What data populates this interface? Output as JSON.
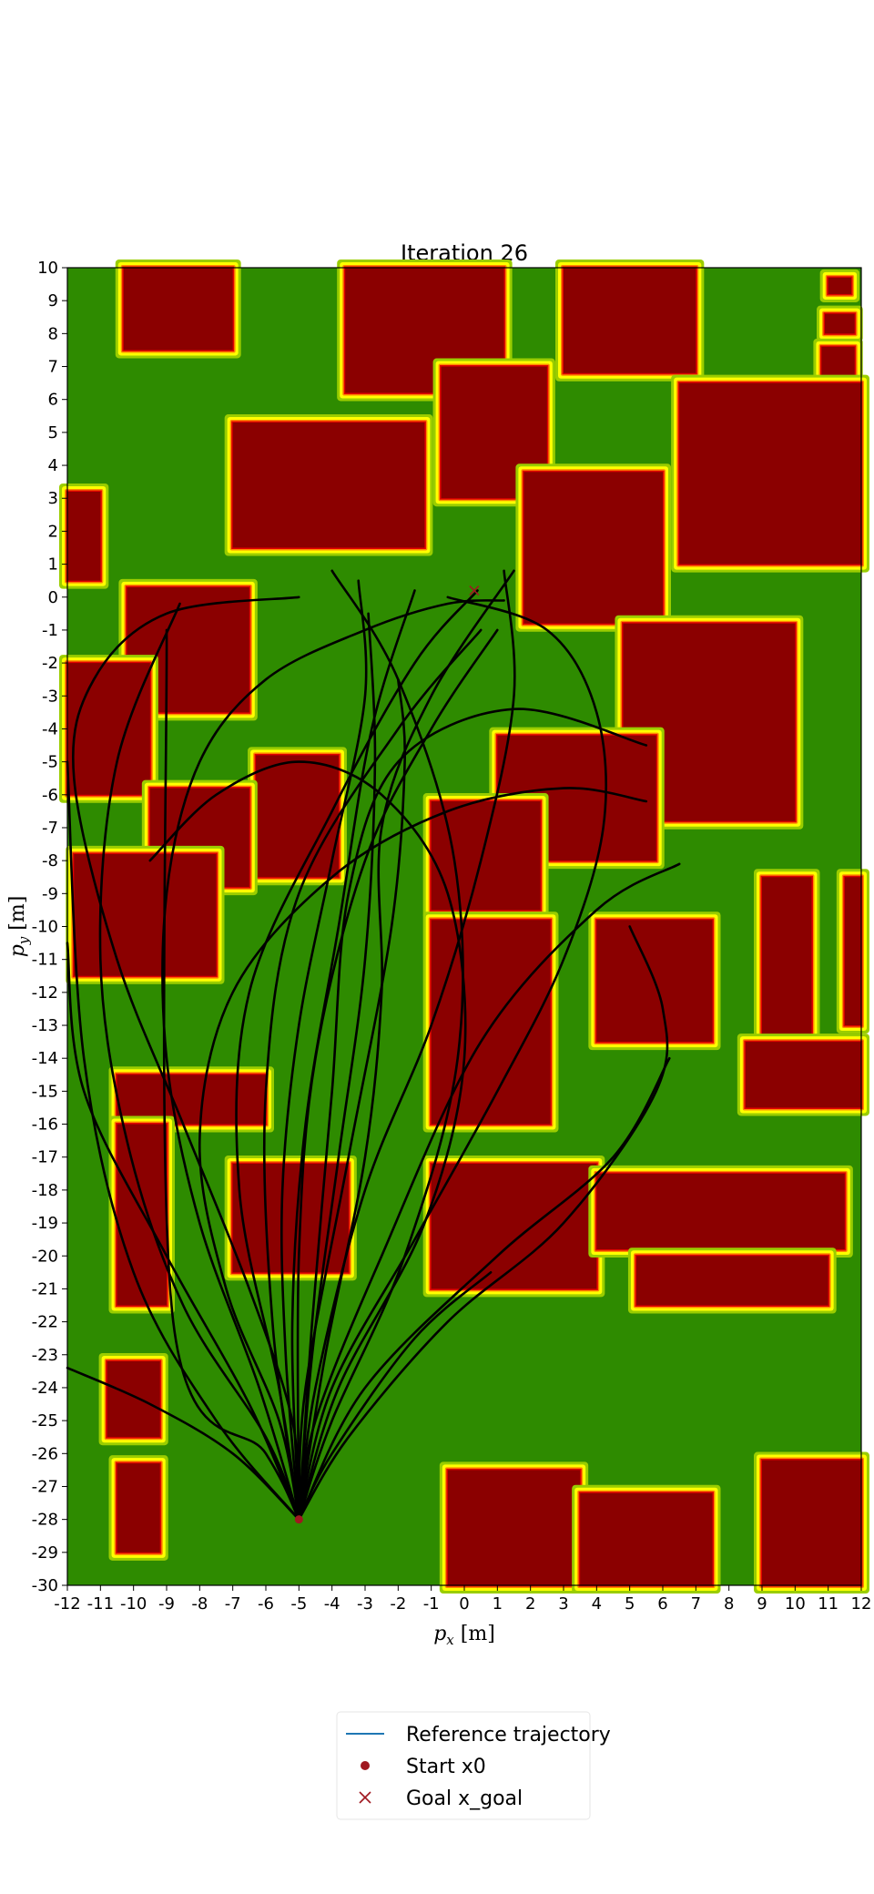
{
  "chart_data": {
    "type": "line",
    "title": "Iteration 26",
    "xlabel": "p_x [m]",
    "ylabel": "p_y [m]",
    "xlim": [
      -12,
      12
    ],
    "ylim": [
      -30,
      10
    ],
    "x_ticks": [
      "-12",
      "-11",
      "-10",
      "-9",
      "-8",
      "-7",
      "-6",
      "-5",
      "-4",
      "-3",
      "-2",
      "-1",
      "0",
      "1",
      "2",
      "3",
      "4",
      "5",
      "6",
      "7",
      "8",
      "9",
      "10",
      "11",
      "12"
    ],
    "y_ticks": [
      "10",
      "9",
      "8",
      "7",
      "6",
      "5",
      "4",
      "3",
      "2",
      "1",
      "0",
      "-1",
      "-2",
      "-3",
      "-4",
      "-5",
      "-6",
      "-7",
      "-8",
      "-9",
      "-10",
      "-11",
      "-12",
      "-13",
      "-14",
      "-15",
      "-16",
      "-17",
      "-18",
      "-19",
      "-20",
      "-21",
      "-22",
      "-23",
      "-24",
      "-25",
      "-26",
      "-27",
      "-28",
      "-29",
      "-30"
    ],
    "grid": false,
    "legend_position": "bottom-center",
    "legend": [
      {
        "label": "Reference trajectory",
        "marker": "line",
        "color": "#1f77b4"
      },
      {
        "label": "Start x0",
        "marker": "dot",
        "color": "#a01820"
      },
      {
        "label": "Goal x_goal",
        "marker": "x",
        "color": "#a01820"
      }
    ],
    "start": {
      "x": -5.0,
      "y": -28.0
    },
    "goal": {
      "x": 0.3,
      "y": 0.2
    },
    "colors": {
      "obstacle": "#8b0000",
      "free": "#2e8b00",
      "costmap_red": "#e00000",
      "costmap_orange": "#ff8c00",
      "costmap_yellow": "#ffff00",
      "costmap_lightgreen": "#9acd00",
      "trajectory": "#000000"
    },
    "obstacles": [
      {
        "name": "b1",
        "x0": -10.3,
        "x1": -7.0,
        "y0": 7.5,
        "y1": 10.0
      },
      {
        "name": "b3",
        "x0": -3.6,
        "x1": 1.2,
        "y0": 6.2,
        "y1": 10.0
      },
      {
        "name": "b4",
        "x0": 3.0,
        "x1": 7.0,
        "y0": 6.8,
        "y1": 10.0
      },
      {
        "name": "b5",
        "x0": 11.0,
        "x1": 11.7,
        "y0": 9.2,
        "y1": 9.7
      },
      {
        "name": "b6",
        "x0": 10.9,
        "x1": 11.8,
        "y0": 8.0,
        "y1": 8.6
      },
      {
        "name": "b7",
        "x0": 10.8,
        "x1": 11.8,
        "y0": 6.7,
        "y1": 7.6
      },
      {
        "name": "b8",
        "x0": 6.5,
        "x1": 12.0,
        "y0": 1.0,
        "y1": 6.5
      },
      {
        "name": "b9",
        "x0": -12.0,
        "x1": -11.0,
        "y0": 0.5,
        "y1": 3.2
      },
      {
        "name": "b10",
        "x0": -7.0,
        "x1": -1.2,
        "y0": 1.5,
        "y1": 5.3
      },
      {
        "name": "b11",
        "x0": -0.7,
        "x1": 2.5,
        "y0": 3.0,
        "y1": 7.0
      },
      {
        "name": "b12",
        "x0": 1.8,
        "x1": 6.0,
        "y0": -0.8,
        "y1": 3.8
      },
      {
        "name": "b13",
        "x0": -10.2,
        "x1": -6.5,
        "y0": -3.5,
        "y1": 0.3
      },
      {
        "name": "b14",
        "x0": -12.0,
        "x1": -9.5,
        "y0": -6.0,
        "y1": -2.0
      },
      {
        "name": "b15",
        "x0": 4.8,
        "x1": 10.0,
        "y0": -6.8,
        "y1": -0.8
      },
      {
        "name": "b16",
        "x0": -6.3,
        "x1": -3.8,
        "y0": -8.5,
        "y1": -4.8
      },
      {
        "name": "b17",
        "x0": -9.5,
        "x1": -6.5,
        "y0": -8.8,
        "y1": -5.8
      },
      {
        "name": "b18",
        "x0": 1.0,
        "x1": 5.8,
        "y0": -8.0,
        "y1": -4.2
      },
      {
        "name": "b19",
        "x0": -1.0,
        "x1": 2.3,
        "y0": -9.5,
        "y1": -6.2
      },
      {
        "name": "b20",
        "x0": -11.8,
        "x1": -7.5,
        "y0": -11.5,
        "y1": -7.8
      },
      {
        "name": "b21",
        "x0": -1.0,
        "x1": 2.6,
        "y0": -16.0,
        "y1": -9.8
      },
      {
        "name": "b22",
        "x0": 4.0,
        "x1": 7.5,
        "y0": -13.5,
        "y1": -9.8
      },
      {
        "name": "b23",
        "x0": 9.0,
        "x1": 10.5,
        "y0": -14.0,
        "y1": -8.5
      },
      {
        "name": "b24",
        "x0": 11.5,
        "x1": 12.0,
        "y0": -13.0,
        "y1": -8.5
      },
      {
        "name": "b25",
        "x0": 8.5,
        "x1": 12.0,
        "y0": -15.5,
        "y1": -13.5
      },
      {
        "name": "b26",
        "x0": -10.5,
        "x1": -6.0,
        "y0": -16.0,
        "y1": -14.5
      },
      {
        "name": "b27",
        "x0": -10.5,
        "x1": -9.0,
        "y0": -21.5,
        "y1": -16.0
      },
      {
        "name": "b28",
        "x0": -7.0,
        "x1": -3.5,
        "y0": -20.5,
        "y1": -17.2
      },
      {
        "name": "b29",
        "x0": -1.0,
        "x1": 4.0,
        "y0": -21.0,
        "y1": -17.2
      },
      {
        "name": "b30",
        "x0": 4.0,
        "x1": 11.5,
        "y0": -19.8,
        "y1": -17.5
      },
      {
        "name": "b31",
        "x0": 5.2,
        "x1": 11.0,
        "y0": -21.5,
        "y1": -20.0
      },
      {
        "name": "b32",
        "x0": -10.8,
        "x1": -9.2,
        "y0": -25.5,
        "y1": -23.2
      },
      {
        "name": "b33",
        "x0": -10.5,
        "x1": -9.2,
        "y0": -29.0,
        "y1": -26.3
      },
      {
        "name": "b34",
        "x0": -0.5,
        "x1": 3.5,
        "y0": -30.0,
        "y1": -26.5
      },
      {
        "name": "b35",
        "x0": 3.5,
        "x1": 7.5,
        "y0": -30.0,
        "y1": -27.2
      },
      {
        "name": "b36",
        "x0": 9.0,
        "x1": 12.0,
        "y0": -30.0,
        "y1": -26.2
      }
    ],
    "series": [
      {
        "x": [
          -5.0,
          -5.2,
          -6.5,
          -8.5,
          -10.5,
          -11.8,
          -11.2,
          -9.0,
          -5.0
        ],
        "y": [
          -28.0,
          -25.0,
          -21.0,
          -16.0,
          -11.0,
          -5.5,
          -2.5,
          -0.5,
          0.0
        ]
      },
      {
        "x": [
          -5.0,
          -4.8,
          -3.5,
          -2.2,
          -1.8,
          -2.0
        ],
        "y": [
          -28.0,
          -24.0,
          -17.0,
          -10.0,
          -5.0,
          -2.5
        ]
      },
      {
        "x": [
          -5.0,
          -5.6,
          -6.8,
          -6.5,
          -4.0,
          -1.5,
          0.4
        ],
        "y": [
          -28.0,
          -24.0,
          -18.0,
          -12.0,
          -6.5,
          -2.0,
          0.2
        ]
      },
      {
        "x": [
          -5.0,
          -4.5,
          -2.5,
          0.5,
          4.0,
          6.5
        ],
        "y": [
          -28.0,
          -25.0,
          -20.0,
          -13.5,
          -9.5,
          -8.1
        ]
      },
      {
        "x": [
          -5.0,
          -3.5,
          -0.5,
          3.0,
          5.8,
          6.0,
          5.0
        ],
        "y": [
          -28.0,
          -25.5,
          -22.0,
          -19.0,
          -15.0,
          -12.5,
          -10.0
        ]
      },
      {
        "x": [
          -5.0,
          -4.0,
          -1.5,
          0.8
        ],
        "y": [
          -28.0,
          -26.0,
          -22.5,
          -20.5
        ]
      },
      {
        "x": [
          -5.0,
          -7.0,
          -9.5,
          -12.0
        ],
        "y": [
          -28.0,
          -26.0,
          -24.5,
          -23.4
        ]
      },
      {
        "x": [
          -5.0,
          -6.0,
          -8.5,
          -10.2,
          -11.0,
          -10.5,
          -8.6
        ],
        "y": [
          -28.0,
          -25.5,
          -21.5,
          -16.5,
          -11.0,
          -5.0,
          -0.2
        ]
      },
      {
        "x": [
          -5.0,
          -4.2,
          -3.0,
          -2.5,
          -2.5,
          -1.0,
          1.5
        ],
        "y": [
          -28.0,
          -23.0,
          -17.0,
          -12.0,
          -7.0,
          -3.0,
          0.8
        ]
      },
      {
        "x": [
          -5.0,
          -6.2,
          -8.0,
          -9.0,
          -9.0,
          -8.0,
          -6.0,
          -3.0,
          -0.5,
          1.2
        ],
        "y": [
          -28.0,
          -24.0,
          -19.0,
          -14.0,
          -9.0,
          -5.0,
          -2.5,
          -1.0,
          -0.2,
          -0.1
        ]
      },
      {
        "x": [
          -5.0,
          -4.0,
          -1.5,
          1.0,
          3.0,
          4.2,
          4.0,
          2.5,
          -0.5
        ],
        "y": [
          -28.0,
          -24.0,
          -19.5,
          -15.0,
          -11.0,
          -7.0,
          -3.5,
          -1.0,
          0.0
        ]
      },
      {
        "x": [
          -5.0,
          -3.0,
          1.0,
          4.5,
          6.2
        ],
        "y": [
          -28.0,
          -24.0,
          -20.0,
          -17.0,
          -14.0
        ]
      },
      {
        "x": [
          -5.0,
          -5.4,
          -5.5,
          -5.0,
          -4.0,
          -3.0,
          -3.2
        ],
        "y": [
          -28.0,
          -23.0,
          -18.0,
          -13.0,
          -8.0,
          -3.0,
          0.5
        ]
      },
      {
        "x": [
          -5.0,
          -6.5,
          -9.0,
          -11.5,
          -12.0
        ],
        "y": [
          -28.0,
          -24.5,
          -20.0,
          -15.0,
          -10.5
        ]
      },
      {
        "x": [
          -5.0,
          -3.8,
          -1.2,
          0.0,
          -0.5,
          -2.5,
          -5.0,
          -7.5,
          -9.5
        ],
        "y": [
          -28.0,
          -24.0,
          -19.0,
          -14.0,
          -9.0,
          -6.0,
          -5.0,
          -6.0,
          -8.0
        ]
      },
      {
        "x": [
          -5.0,
          -4.6,
          -4.0,
          -3.5,
          -2.0,
          1.5,
          5.5
        ],
        "y": [
          -28.0,
          -22.0,
          -15.0,
          -9.0,
          -5.0,
          -3.4,
          -4.5
        ]
      },
      {
        "x": [
          -5.0,
          -5.8,
          -6.0,
          -5.0,
          -2.0,
          0.5
        ],
        "y": [
          -28.0,
          -22.0,
          -15.0,
          -9.0,
          -4.0,
          -1.0
        ]
      },
      {
        "x": [
          -5.0,
          -4.5,
          -3.0,
          -1.0,
          0.5,
          1.5,
          1.2
        ],
        "y": [
          -28.0,
          -24.0,
          -18.0,
          -13.0,
          -8.0,
          -3.0,
          0.8
        ]
      },
      {
        "x": [
          -5.0,
          -7.5,
          -10.0,
          -11.5,
          -12.0
        ],
        "y": [
          -28.0,
          -25.0,
          -20.5,
          -14.0,
          -5.0
        ]
      },
      {
        "x": [
          -5.0,
          -5.0,
          -4.5,
          -3.0,
          -1.0,
          1.0
        ],
        "y": [
          -28.0,
          -20.0,
          -14.0,
          -8.0,
          -4.0,
          -1.0
        ]
      },
      {
        "x": [
          -5.0,
          -6.0,
          -8.8,
          -9.0
        ],
        "y": [
          -28.0,
          -26.0,
          -22.0,
          -1.0
        ]
      },
      {
        "x": [
          -5.0,
          -5.6,
          -7.2,
          -8.0,
          -7.0,
          -4.0,
          -0.5,
          3.0,
          5.5
        ],
        "y": [
          -28.0,
          -25.0,
          -21.0,
          -16.5,
          -12.0,
          -8.5,
          -6.5,
          -5.8,
          -6.2
        ]
      },
      {
        "x": [
          -5.0,
          -4.6,
          -3.8,
          -3.0,
          -2.7,
          -2.9
        ],
        "y": [
          -28.0,
          -23.0,
          -17.0,
          -11.0,
          -5.0,
          -0.5
        ]
      },
      {
        "x": [
          -5.0,
          -5.2,
          -4.8,
          -3.8,
          -2.8,
          -1.5
        ],
        "y": [
          -28.0,
          -22.0,
          -16.0,
          -10.0,
          -4.0,
          0.2
        ]
      },
      {
        "x": [
          -5.0,
          -4.0,
          -1.8,
          -0.2,
          -0.3,
          -2.0,
          -4.0
        ],
        "y": [
          -28.0,
          -25.0,
          -20.0,
          -14.0,
          -8.0,
          -2.5,
          0.8
        ]
      }
    ]
  }
}
